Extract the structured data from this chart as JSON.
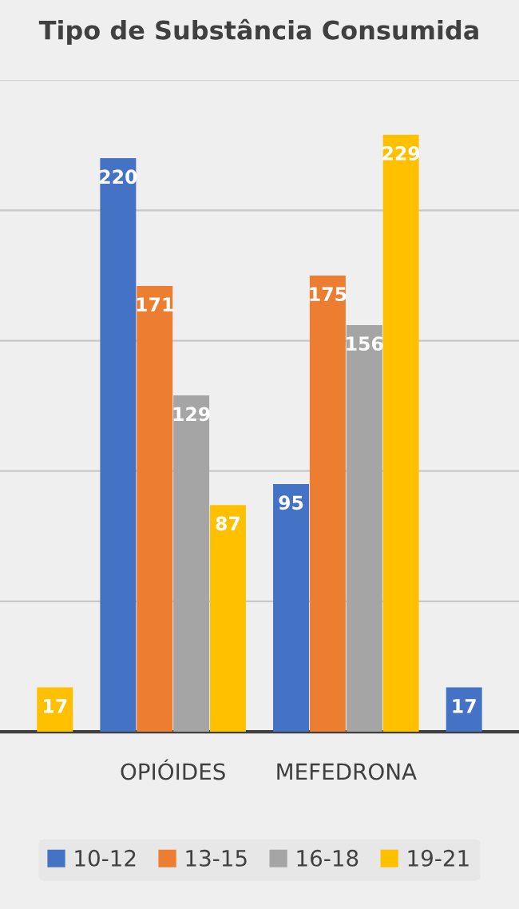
{
  "chart_data": {
    "type": "bar",
    "title": "Tipo de Substância Consumida",
    "categories": [
      null,
      "OPIÓIDES",
      "MEFEDRONA",
      null
    ],
    "series": [
      {
        "name": "10-12",
        "color": "#4472c4",
        "values": [
          null,
          220,
          95,
          17
        ]
      },
      {
        "name": "13-15",
        "color": "#ed7d31",
        "values": [
          null,
          171,
          175,
          null
        ]
      },
      {
        "name": "16-18",
        "color": "#a5a5a5",
        "values": [
          null,
          129,
          156,
          null
        ]
      },
      {
        "name": "19-21",
        "color": "#ffc000",
        "values": [
          17,
          87,
          229,
          null
        ]
      }
    ],
    "ylim": [
      0,
      250
    ],
    "yticks": [
      {
        "value": 50,
        "label": null
      },
      {
        "value": 100,
        "label": null
      },
      {
        "value": 150,
        "label": null
      },
      {
        "value": 200,
        "label": null
      },
      {
        "value": 250,
        "label": null
      }
    ],
    "grid": "y",
    "data_labels": true,
    "legend": "bottom",
    "tick_labels": "x"
  }
}
